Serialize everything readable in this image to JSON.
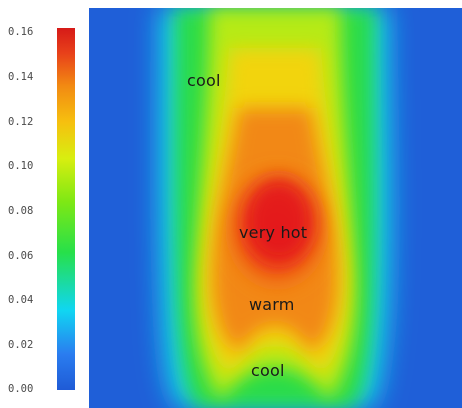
{
  "colorbar": {
    "ticks": [
      "0.16",
      "0.14",
      "0.12",
      "0.10",
      "0.08",
      "0.06",
      "0.04",
      "0.02",
      "0.00"
    ],
    "min": 0.0,
    "max": 0.16,
    "colors": [
      "#1f5bd6",
      "#10d6f2",
      "#27e04a",
      "#d8ee10",
      "#f28a12",
      "#d61a18"
    ]
  },
  "labels": {
    "top_cool": "cool",
    "very_hot": "very hot",
    "warm": "warm",
    "bottom_cool": "cool"
  }
}
